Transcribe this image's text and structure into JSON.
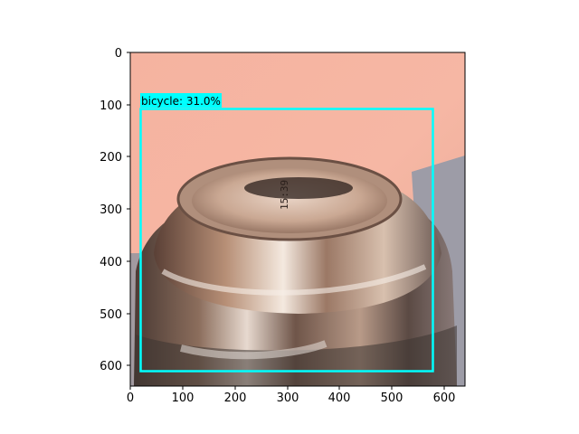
{
  "axes": {
    "x_ticks": [
      "0",
      "100",
      "200",
      "300",
      "400",
      "500",
      "600"
    ],
    "y_ticks": [
      "0",
      "100",
      "200",
      "300",
      "400",
      "500",
      "600"
    ]
  },
  "detection": {
    "label": "bicycle: 31.0%",
    "box_color": "#00ffff",
    "label_bg_color": "#00ffff"
  },
  "photo": {
    "subject_icon": "aluminum-can-top"
  }
}
